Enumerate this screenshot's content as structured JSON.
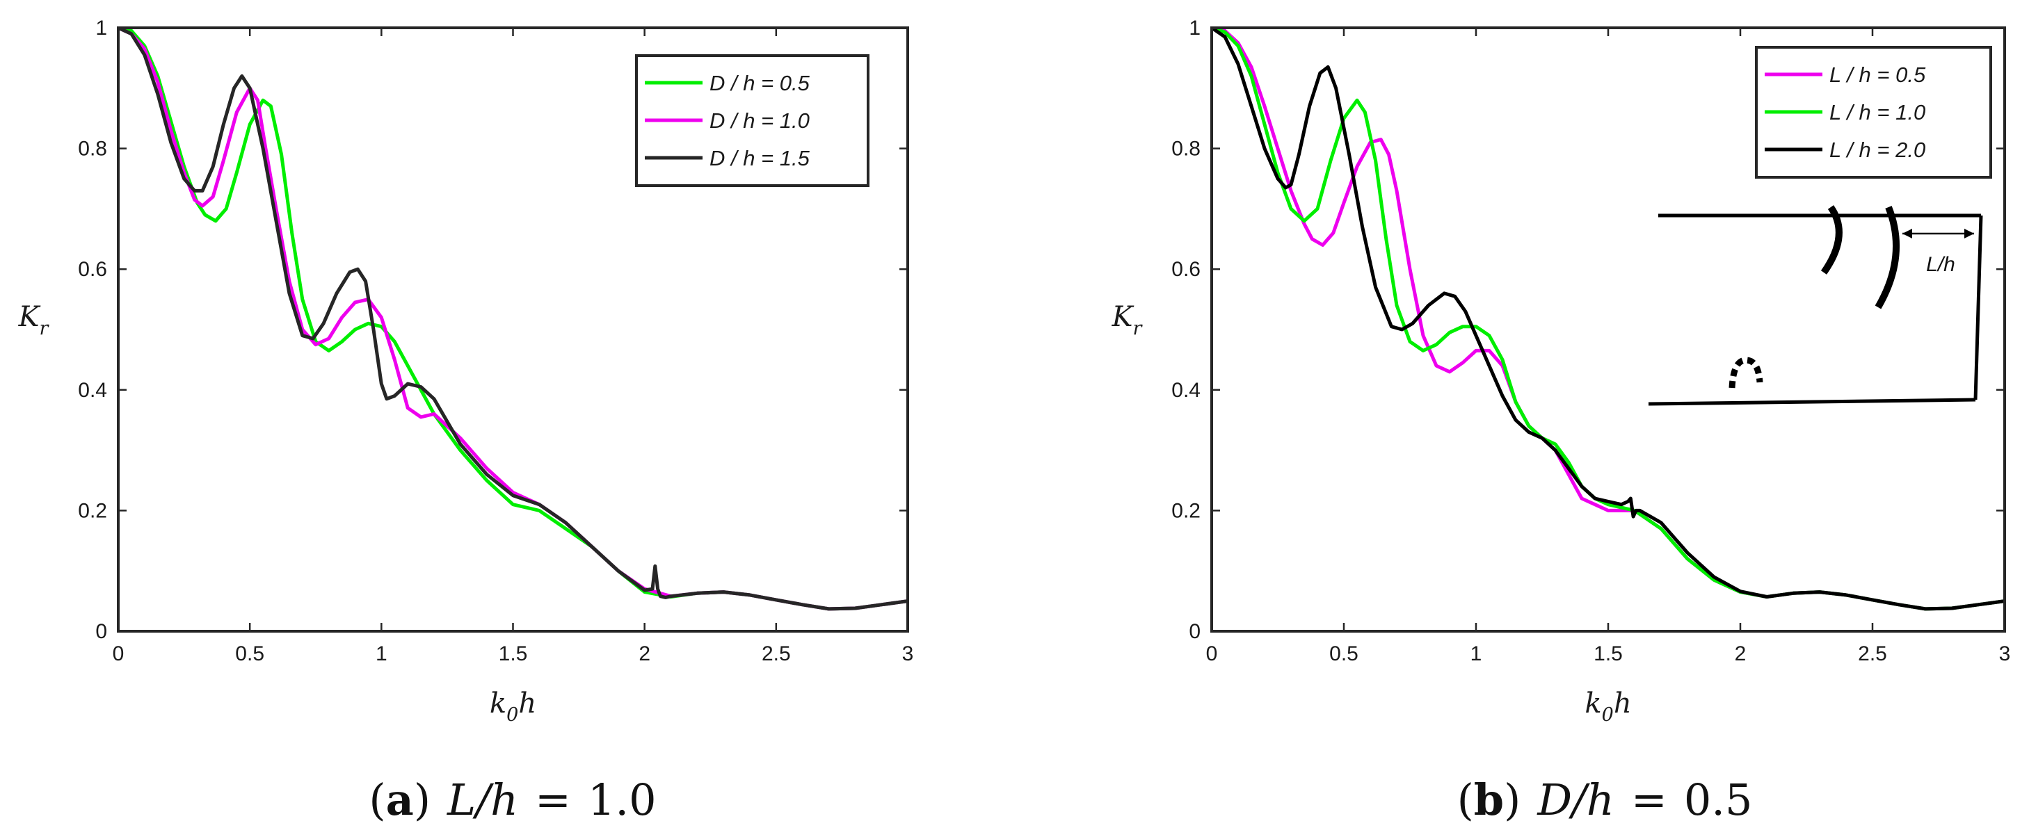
{
  "chart_data": [
    {
      "type": "line",
      "panel_id": "a",
      "caption": {
        "tag": "(a)",
        "text": "L/h = 1.0"
      },
      "xlabel": "k0h",
      "ylabel": "Kr",
      "xlim": [
        0,
        3
      ],
      "ylim": [
        0,
        1
      ],
      "xticks": [
        "0",
        "0.5",
        "1",
        "1.5",
        "2",
        "2.5",
        "3"
      ],
      "yticks": [
        "0",
        "0.2",
        "0.4",
        "0.6",
        "0.8",
        "1"
      ],
      "legend_position": "top-right",
      "series": [
        {
          "name": "D / h = 0.5",
          "color": "#00ee00",
          "x": [
            0,
            0.05,
            0.1,
            0.15,
            0.2,
            0.25,
            0.3,
            0.33,
            0.37,
            0.41,
            0.45,
            0.5,
            0.55,
            0.58,
            0.62,
            0.66,
            0.7,
            0.75,
            0.8,
            0.85,
            0.9,
            0.95,
            1.0,
            1.05,
            1.1,
            1.2,
            1.3,
            1.4,
            1.5,
            1.6,
            1.7,
            1.8,
            1.9,
            2.0,
            2.1,
            2.2,
            2.3,
            2.4,
            2.5,
            2.6,
            2.7,
            2.8,
            2.9,
            3.0
          ],
          "y": [
            1.0,
            0.995,
            0.97,
            0.92,
            0.845,
            0.77,
            0.71,
            0.69,
            0.68,
            0.7,
            0.76,
            0.84,
            0.88,
            0.87,
            0.79,
            0.66,
            0.55,
            0.48,
            0.465,
            0.48,
            0.5,
            0.51,
            0.505,
            0.48,
            0.44,
            0.36,
            0.3,
            0.25,
            0.21,
            0.2,
            0.17,
            0.14,
            0.1,
            0.065,
            0.057,
            0.063,
            0.065,
            0.06,
            0.052,
            0.044,
            0.037,
            0.038,
            0.044,
            0.05
          ]
        },
        {
          "name": "D / h = 1.0",
          "color": "#ee00ee",
          "x": [
            0,
            0.05,
            0.1,
            0.15,
            0.2,
            0.25,
            0.29,
            0.32,
            0.36,
            0.4,
            0.45,
            0.5,
            0.53,
            0.56,
            0.6,
            0.65,
            0.7,
            0.75,
            0.8,
            0.85,
            0.9,
            0.95,
            1.0,
            1.05,
            1.1,
            1.15,
            1.2,
            1.3,
            1.4,
            1.5,
            1.6,
            1.7,
            1.8,
            1.9,
            2.0,
            2.1,
            2.2,
            2.3,
            2.4,
            2.5,
            2.6,
            2.7,
            2.8,
            2.9,
            3.0
          ],
          "y": [
            1.0,
            0.99,
            0.965,
            0.91,
            0.83,
            0.76,
            0.715,
            0.705,
            0.72,
            0.78,
            0.86,
            0.9,
            0.88,
            0.8,
            0.7,
            0.58,
            0.5,
            0.475,
            0.485,
            0.52,
            0.545,
            0.55,
            0.52,
            0.45,
            0.37,
            0.355,
            0.36,
            0.32,
            0.27,
            0.23,
            0.21,
            0.18,
            0.14,
            0.1,
            0.07,
            0.058,
            0.063,
            0.065,
            0.06,
            0.052,
            0.044,
            0.037,
            0.038,
            0.044,
            0.05
          ]
        },
        {
          "name": "D / h = 1.5",
          "color": "#262626",
          "x": [
            0,
            0.05,
            0.1,
            0.15,
            0.2,
            0.25,
            0.29,
            0.32,
            0.36,
            0.4,
            0.44,
            0.47,
            0.5,
            0.55,
            0.6,
            0.65,
            0.7,
            0.74,
            0.78,
            0.83,
            0.88,
            0.91,
            0.94,
            0.97,
            1.0,
            1.02,
            1.05,
            1.1,
            1.15,
            1.2,
            1.3,
            1.4,
            1.5,
            1.6,
            1.7,
            1.8,
            1.9,
            2.0,
            2.03,
            2.04,
            2.05,
            2.06,
            2.08,
            2.1,
            2.2,
            2.3,
            2.4,
            2.5,
            2.6,
            2.7,
            2.8,
            2.9,
            3.0
          ],
          "y": [
            1.0,
            0.99,
            0.955,
            0.89,
            0.81,
            0.75,
            0.73,
            0.73,
            0.77,
            0.84,
            0.9,
            0.92,
            0.9,
            0.8,
            0.68,
            0.56,
            0.49,
            0.485,
            0.51,
            0.56,
            0.595,
            0.6,
            0.58,
            0.5,
            0.41,
            0.385,
            0.39,
            0.41,
            0.405,
            0.385,
            0.31,
            0.26,
            0.225,
            0.21,
            0.18,
            0.14,
            0.1,
            0.068,
            0.07,
            0.108,
            0.07,
            0.058,
            0.056,
            0.058,
            0.063,
            0.065,
            0.06,
            0.052,
            0.044,
            0.037,
            0.038,
            0.044,
            0.05
          ]
        }
      ]
    },
    {
      "type": "line",
      "panel_id": "b",
      "caption": {
        "tag": "(b)",
        "text": "D/h = 0.5"
      },
      "xlabel": "k0h",
      "ylabel": "Kr",
      "xlim": [
        0,
        3
      ],
      "ylim": [
        0,
        1
      ],
      "xticks": [
        "0",
        "0.5",
        "1",
        "1.5",
        "2",
        "2.5",
        "3"
      ],
      "yticks": [
        "0",
        "0.2",
        "0.4",
        "0.6",
        "0.8",
        "1"
      ],
      "legend_position": "top-right",
      "inset_label": "L/h",
      "series": [
        {
          "name": "L / h = 0.5",
          "color": "#ee00ee",
          "x": [
            0,
            0.05,
            0.1,
            0.15,
            0.2,
            0.25,
            0.3,
            0.35,
            0.38,
            0.42,
            0.46,
            0.5,
            0.55,
            0.6,
            0.64,
            0.67,
            0.7,
            0.75,
            0.8,
            0.85,
            0.9,
            0.95,
            1.0,
            1.05,
            1.1,
            1.15,
            1.2,
            1.25,
            1.3,
            1.35,
            1.4,
            1.45,
            1.5,
            1.55,
            1.6,
            1.7,
            1.8,
            1.9,
            2.0,
            2.1,
            2.2,
            2.3,
            2.4,
            2.5,
            2.6,
            2.7,
            2.8,
            2.9,
            3.0
          ],
          "y": [
            1.0,
            0.995,
            0.975,
            0.935,
            0.87,
            0.8,
            0.73,
            0.675,
            0.65,
            0.64,
            0.66,
            0.71,
            0.77,
            0.81,
            0.815,
            0.79,
            0.73,
            0.6,
            0.49,
            0.44,
            0.43,
            0.445,
            0.465,
            0.465,
            0.44,
            0.38,
            0.34,
            0.32,
            0.3,
            0.26,
            0.22,
            0.21,
            0.2,
            0.2,
            0.2,
            0.17,
            0.12,
            0.085,
            0.065,
            0.057,
            0.063,
            0.065,
            0.06,
            0.052,
            0.044,
            0.037,
            0.038,
            0.044,
            0.05
          ]
        },
        {
          "name": "L / h = 1.0",
          "color": "#00ee00",
          "x": [
            0,
            0.05,
            0.1,
            0.15,
            0.2,
            0.25,
            0.3,
            0.35,
            0.4,
            0.45,
            0.5,
            0.55,
            0.58,
            0.62,
            0.66,
            0.7,
            0.75,
            0.8,
            0.85,
            0.9,
            0.95,
            1.0,
            1.05,
            1.1,
            1.15,
            1.2,
            1.25,
            1.3,
            1.35,
            1.4,
            1.45,
            1.5,
            1.55,
            1.6,
            1.7,
            1.8,
            1.9,
            2.0,
            2.1,
            2.2,
            2.3,
            2.4,
            2.5,
            2.6,
            2.7,
            2.8,
            2.9,
            3.0
          ],
          "y": [
            1.0,
            0.993,
            0.97,
            0.92,
            0.84,
            0.76,
            0.7,
            0.68,
            0.7,
            0.78,
            0.85,
            0.88,
            0.86,
            0.78,
            0.65,
            0.54,
            0.48,
            0.465,
            0.475,
            0.495,
            0.505,
            0.505,
            0.49,
            0.45,
            0.38,
            0.34,
            0.32,
            0.31,
            0.28,
            0.24,
            0.22,
            0.21,
            0.205,
            0.2,
            0.17,
            0.12,
            0.085,
            0.065,
            0.057,
            0.063,
            0.065,
            0.06,
            0.052,
            0.044,
            0.037,
            0.038,
            0.044,
            0.05
          ]
        },
        {
          "name": "L / h = 2.0",
          "color": "#000000",
          "x": [
            0,
            0.05,
            0.1,
            0.15,
            0.2,
            0.25,
            0.28,
            0.3,
            0.33,
            0.37,
            0.41,
            0.44,
            0.47,
            0.52,
            0.57,
            0.62,
            0.68,
            0.72,
            0.76,
            0.82,
            0.88,
            0.92,
            0.96,
            1.0,
            1.05,
            1.1,
            1.15,
            1.2,
            1.25,
            1.3,
            1.35,
            1.4,
            1.45,
            1.5,
            1.55,
            1.575,
            1.585,
            1.595,
            1.605,
            1.62,
            1.7,
            1.8,
            1.9,
            2.0,
            2.1,
            2.2,
            2.3,
            2.4,
            2.5,
            2.6,
            2.7,
            2.8,
            2.9,
            3.0
          ],
          "y": [
            1.0,
            0.985,
            0.94,
            0.87,
            0.8,
            0.75,
            0.735,
            0.74,
            0.79,
            0.87,
            0.925,
            0.935,
            0.9,
            0.79,
            0.67,
            0.57,
            0.505,
            0.5,
            0.51,
            0.54,
            0.56,
            0.555,
            0.53,
            0.49,
            0.44,
            0.39,
            0.35,
            0.33,
            0.32,
            0.3,
            0.27,
            0.24,
            0.22,
            0.215,
            0.21,
            0.215,
            0.22,
            0.19,
            0.2,
            0.2,
            0.18,
            0.13,
            0.09,
            0.066,
            0.057,
            0.063,
            0.065,
            0.06,
            0.052,
            0.044,
            0.037,
            0.038,
            0.044,
            0.05
          ]
        }
      ]
    }
  ]
}
